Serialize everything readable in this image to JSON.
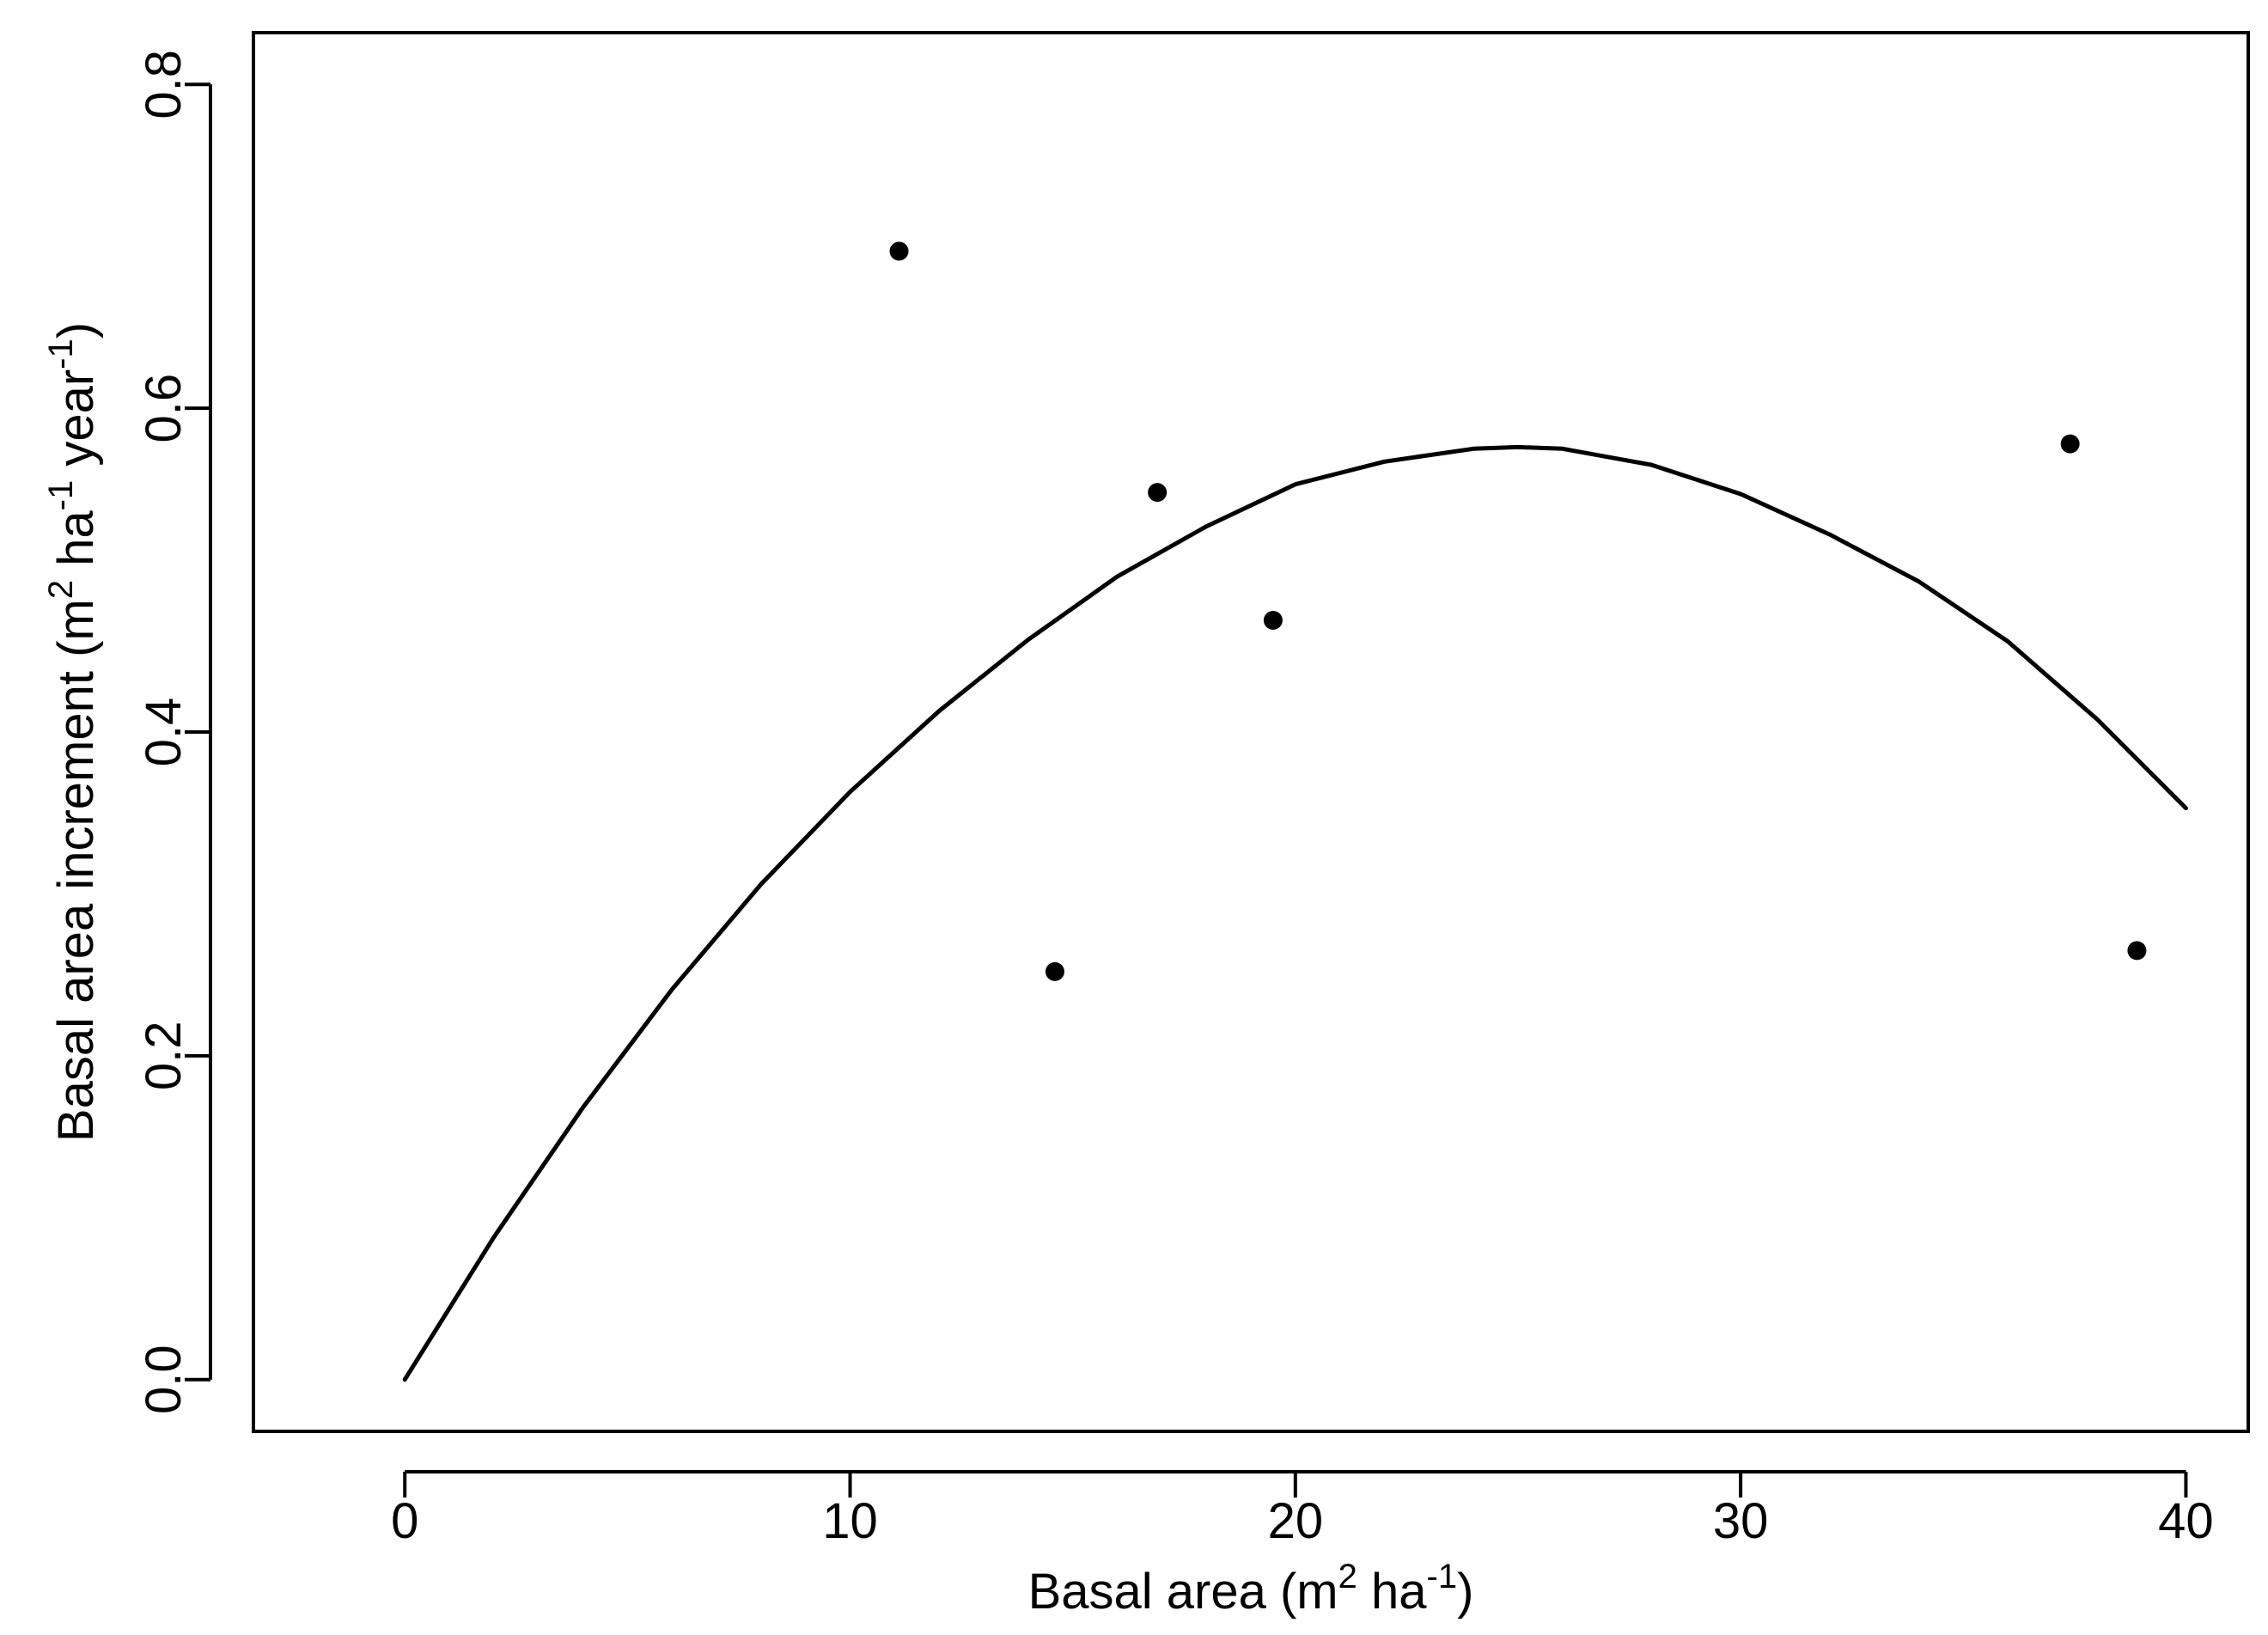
{
  "chart_data": {
    "type": "scatter",
    "title": "",
    "xlabel": {
      "prefix": "Basal area (m",
      "sup1": "2",
      "mid": " ha",
      "sup2": "-1",
      "suffix": ")"
    },
    "ylabel": {
      "prefix": "Basal area increment (m",
      "sup1": "2",
      "mid1": " ha",
      "sup2": "-1",
      "mid2": " year",
      "sup3": "-1",
      "suffix": ")"
    },
    "xlim": [
      -3.4,
      41.4
    ],
    "ylim": [
      -0.032,
      0.832
    ],
    "x_ticks": [
      0,
      10,
      20,
      30,
      40
    ],
    "x_tick_labels": [
      "0",
      "10",
      "20",
      "30",
      "40"
    ],
    "y_ticks": [
      0.0,
      0.2,
      0.4,
      0.6,
      0.8
    ],
    "y_tick_labels": [
      "0.0",
      "0.2",
      "0.4",
      "0.6",
      "0.8"
    ],
    "grid": false,
    "points": [
      {
        "x": 11.1,
        "y": 0.697
      },
      {
        "x": 14.6,
        "y": 0.252
      },
      {
        "x": 16.9,
        "y": 0.548
      },
      {
        "x": 19.5,
        "y": 0.469
      },
      {
        "x": 37.4,
        "y": 0.578
      },
      {
        "x": 38.9,
        "y": 0.265
      }
    ],
    "fit_curve": {
      "x": [
        0,
        2,
        4,
        6,
        8,
        10,
        12,
        14,
        16,
        18,
        20,
        22,
        24,
        25,
        26,
        28,
        30,
        32,
        34,
        36,
        38,
        40
      ],
      "y": [
        0.0,
        0.088,
        0.168,
        0.241,
        0.306,
        0.363,
        0.413,
        0.457,
        0.496,
        0.527,
        0.553,
        0.567,
        0.575,
        0.576,
        0.575,
        0.565,
        0.547,
        0.522,
        0.493,
        0.456,
        0.408,
        0.353
      ]
    }
  }
}
